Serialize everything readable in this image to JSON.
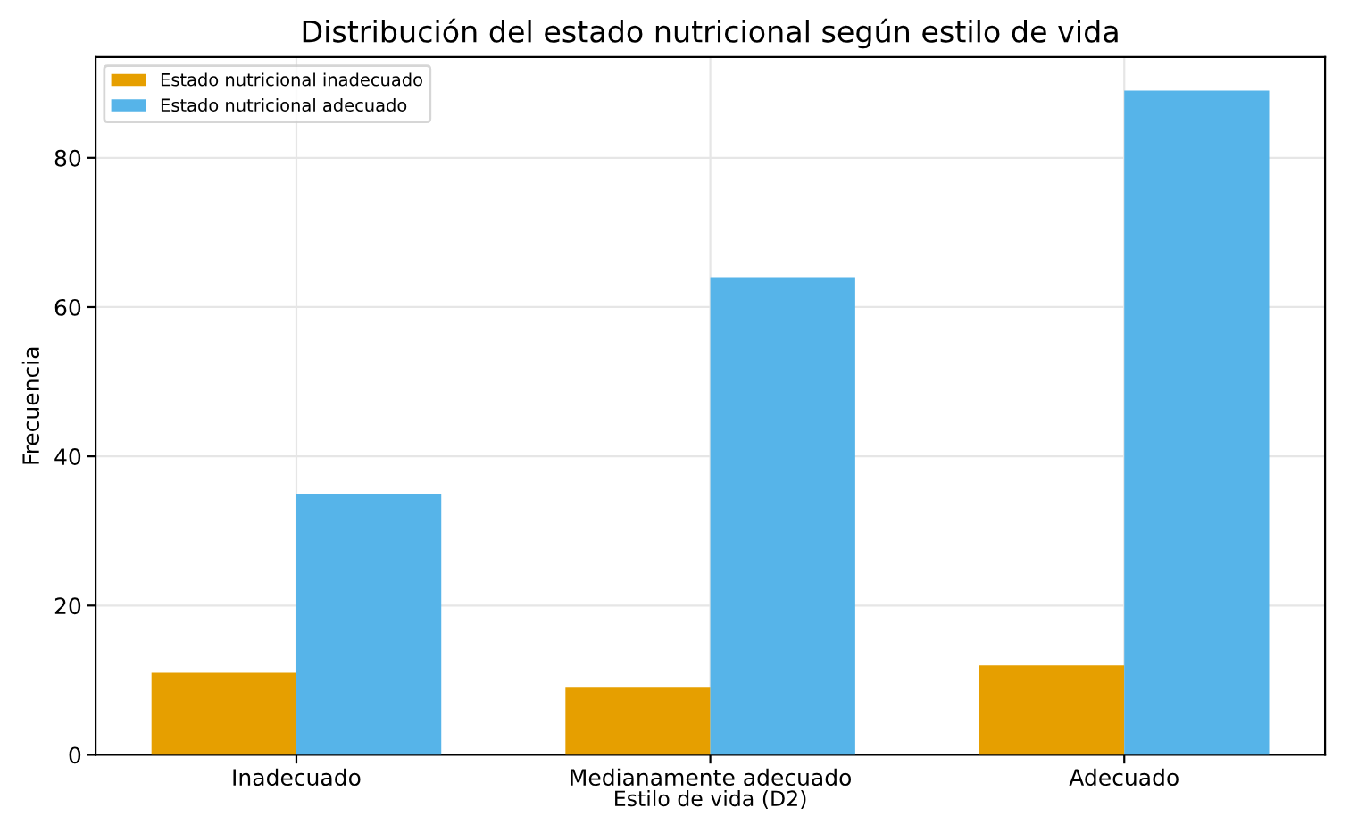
{
  "chart_data": {
    "type": "bar",
    "title": "Distribución del estado nutricional según estilo de vida",
    "xlabel": "Estilo de vida (D2)",
    "ylabel": "Frecuencia",
    "categories": [
      "Inadecuado",
      "Medianamente adecuado",
      "Adecuado"
    ],
    "series": [
      {
        "name": "Estado nutricional inadecuado",
        "color": "#e69f00",
        "values": [
          11,
          9,
          12
        ]
      },
      {
        "name": "Estado nutricional adecuado",
        "color": "#56b4e9",
        "values": [
          35,
          64,
          89
        ]
      }
    ],
    "ylim": [
      0,
      93.5
    ],
    "yticks": [
      0,
      20,
      40,
      60,
      80
    ],
    "grid": true,
    "legend": "top left"
  }
}
